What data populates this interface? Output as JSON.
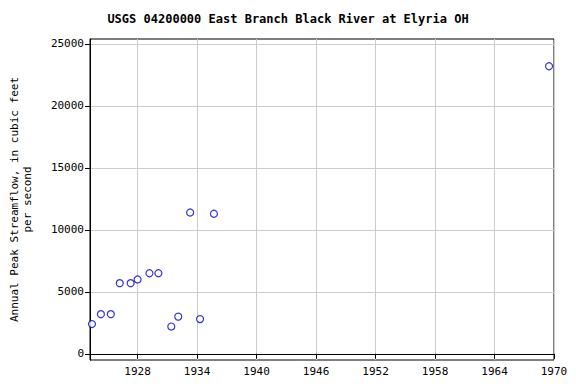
{
  "chart_data": {
    "type": "scatter",
    "title": "USGS 04200000 East Branch Black River at Elyria OH",
    "y_label": "Annual Peak Streamflow, in cubic feet\nper second",
    "x": [
      1923.4,
      1924.3,
      1925.3,
      1926.2,
      1927.3,
      1928.0,
      1929.2,
      1930.1,
      1931.4,
      1932.1,
      1933.3,
      1934.3,
      1935.7,
      1969.5
    ],
    "values": [
      2400,
      3200,
      3200,
      5700,
      5700,
      6000,
      6500,
      6500,
      2200,
      3000,
      11400,
      2800,
      11300,
      23200
    ],
    "color": "#0000cc",
    "marker": "circle_open",
    "xlim": [
      1923.2,
      1970
    ],
    "xticks": [
      1928,
      1934,
      1940,
      1946,
      1952,
      1958,
      1964,
      1970
    ],
    "ylim": [
      -500,
      25400
    ],
    "yticks": [
      0,
      5000,
      10000,
      15000,
      20000,
      25000
    ],
    "grid": true
  }
}
